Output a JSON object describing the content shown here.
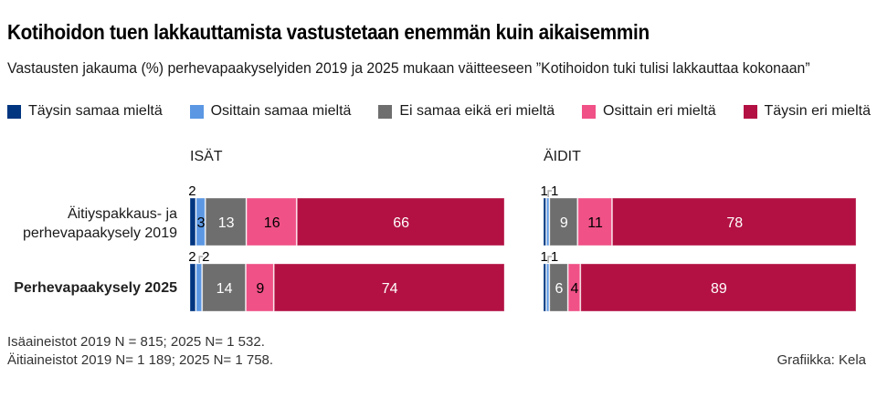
{
  "title": "Kotihoidon tuen lakkauttamista vastustetaan enemmän kuin aikaisemmin",
  "subtitle": "Vastausten jakauma (%) perhevapaakyselyiden 2019 ja 2025 mukaan väitteeseen ”Kotihoidon tuki tulisi lakkauttaa kokonaan”",
  "legend": [
    {
      "label": "Täysin samaa mieltä",
      "color": "#003580"
    },
    {
      "label": "Osittain samaa mieltä",
      "color": "#5b97e3"
    },
    {
      "label": "Ei samaa eikä eri mieltä",
      "color": "#6e6e6e"
    },
    {
      "label": "Osittain eri mieltä",
      "color": "#f05186"
    },
    {
      "label": "Täysin eri mieltä",
      "color": "#b31143"
    }
  ],
  "chart_data": [
    {
      "type": "bar",
      "orientation": "horizontal",
      "stacked": "100%",
      "title": "ISÄT",
      "categories": [
        "Äitiyspakkaus- ja perhevapaakysely 2019",
        "Perhevapaakysely 2025"
      ],
      "series": [
        {
          "name": "Täysin samaa mieltä",
          "values": [
            2,
            2
          ]
        },
        {
          "name": "Osittain samaa mieltä",
          "values": [
            3,
            2
          ]
        },
        {
          "name": "Ei samaa eikä eri mieltä",
          "values": [
            13,
            14
          ]
        },
        {
          "name": "Osittain eri mieltä",
          "values": [
            16,
            9
          ]
        },
        {
          "name": "Täysin eri mieltä",
          "values": [
            66,
            74
          ]
        }
      ]
    },
    {
      "type": "bar",
      "orientation": "horizontal",
      "stacked": "100%",
      "title": "ÄIDIT",
      "categories": [
        "Äitiyspakkaus- ja perhevapaakysely 2019",
        "Perhevapaakysely 2025"
      ],
      "series": [
        {
          "name": "Täysin samaa mieltä",
          "values": [
            1,
            1
          ]
        },
        {
          "name": "Osittain samaa mieltä",
          "values": [
            1,
            1
          ]
        },
        {
          "name": "Ei samaa eikä eri mieltä",
          "values": [
            9,
            6
          ]
        },
        {
          "name": "Osittain eri mieltä",
          "values": [
            11,
            4
          ]
        },
        {
          "name": "Täysin eri mieltä",
          "values": [
            78,
            89
          ]
        }
      ]
    }
  ],
  "categories": {
    "row1_line1": "Äitiyspakkaus- ja",
    "row1_line2": "perhevapaakysely 2019",
    "row2": "Perhevapaakysely 2025"
  },
  "panels": {
    "left": "ISÄT",
    "right": "ÄIDIT"
  },
  "footer": {
    "note1": "Isäaineistot 2019 N = 815; 2025 N= 1 532.",
    "note2": "Äitiaineistot 2019 N= 1 189; 2025 N= 1 758.",
    "credit": "Grafiikka: Kela"
  }
}
